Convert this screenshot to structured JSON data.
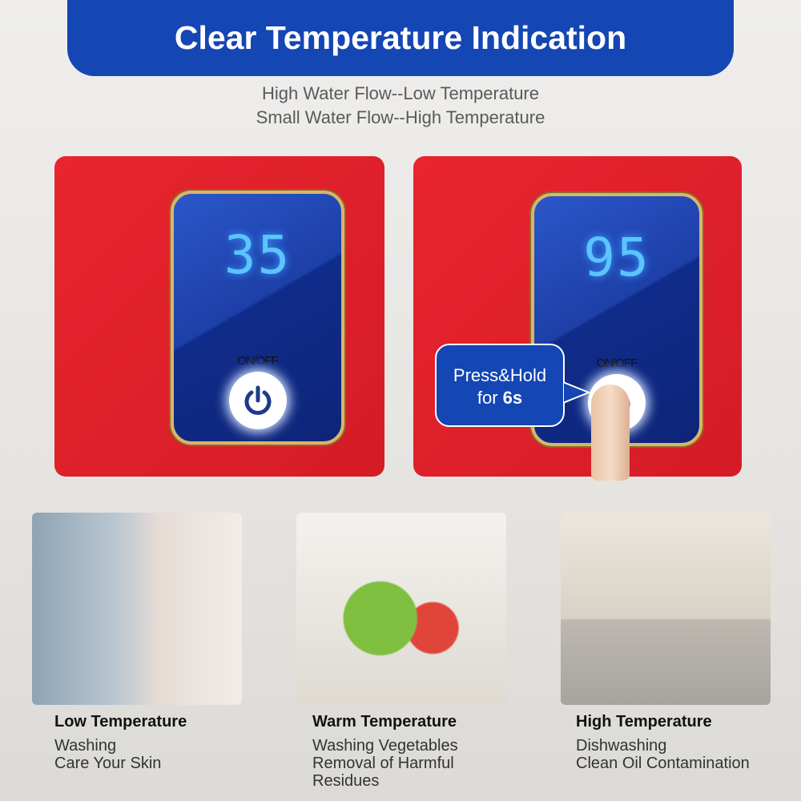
{
  "header": {
    "title": "Clear Temperature Indication"
  },
  "subtitle": {
    "line1": "High Water Flow--Low Temperature",
    "line2": "Small Water Flow--High Temperature"
  },
  "panels": [
    {
      "temperature": "35",
      "button_label": "ON/OFF"
    },
    {
      "temperature": "95",
      "button_label": "ON/OFF",
      "callout_line1": "Press&Hold",
      "callout_prefix": "for",
      "callout_bold": "6s"
    }
  ],
  "colors": {
    "header": "#1446b4",
    "panel": "#e0222b",
    "digits": "#5cc4ff",
    "frame": "#d9b56a"
  },
  "scenes": [
    {
      "title": "Low Temperature",
      "lines": [
        "Washing",
        "Care Your Skin"
      ]
    },
    {
      "title": "Warm Temperature",
      "lines": [
        "Washing Vegetables",
        "Removal of Harmful",
        "Residues"
      ]
    },
    {
      "title": "High Temperature",
      "lines": [
        "Dishwashing",
        "Clean Oil Contamination"
      ]
    }
  ]
}
